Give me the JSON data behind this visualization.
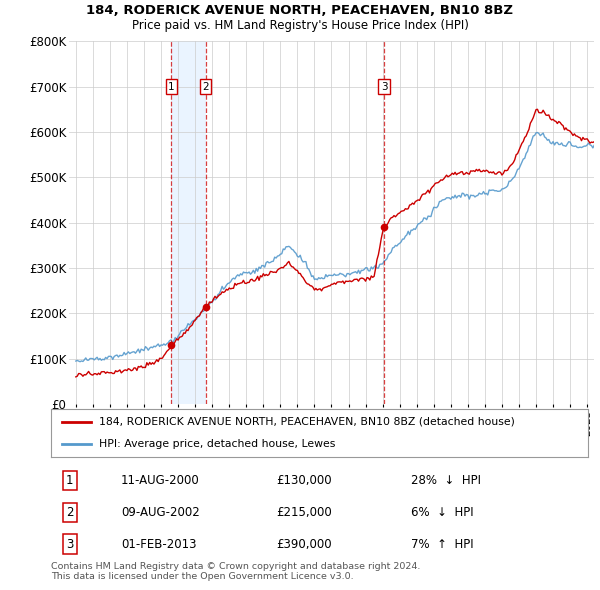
{
  "title1": "184, RODERICK AVENUE NORTH, PEACEHAVEN, BN10 8BZ",
  "title2": "Price paid vs. HM Land Registry's House Price Index (HPI)",
  "ylim": [
    0,
    800000
  ],
  "yticks": [
    0,
    100000,
    200000,
    300000,
    400000,
    500000,
    600000,
    700000,
    800000
  ],
  "ytick_labels": [
    "£0",
    "£100K",
    "£200K",
    "£300K",
    "£400K",
    "£500K",
    "£600K",
    "£700K",
    "£800K"
  ],
  "xlim_start": 1994.6,
  "xlim_end": 2025.4,
  "legend_line1": "184, RODERICK AVENUE NORTH, PEACEHAVEN, BN10 8BZ (detached house)",
  "legend_line2": "HPI: Average price, detached house, Lewes",
  "transactions": [
    {
      "label": "1",
      "date": "11-AUG-2000",
      "price": 130000,
      "pct": "28%",
      "dir": "↓",
      "x": 2000.61
    },
    {
      "label": "2",
      "date": "09-AUG-2002",
      "price": 215000,
      "pct": "6%",
      "dir": "↓",
      "x": 2002.61
    },
    {
      "label": "3",
      "date": "01-FEB-2013",
      "price": 390000,
      "pct": "7%",
      "dir": "↑",
      "x": 2013.08
    }
  ],
  "footnote1": "Contains HM Land Registry data © Crown copyright and database right 2024.",
  "footnote2": "This data is licensed under the Open Government Licence v3.0.",
  "red_color": "#cc0000",
  "blue_color": "#5599cc",
  "shade_color": "#ddeeff",
  "background_color": "#ffffff",
  "grid_color": "#cccccc"
}
